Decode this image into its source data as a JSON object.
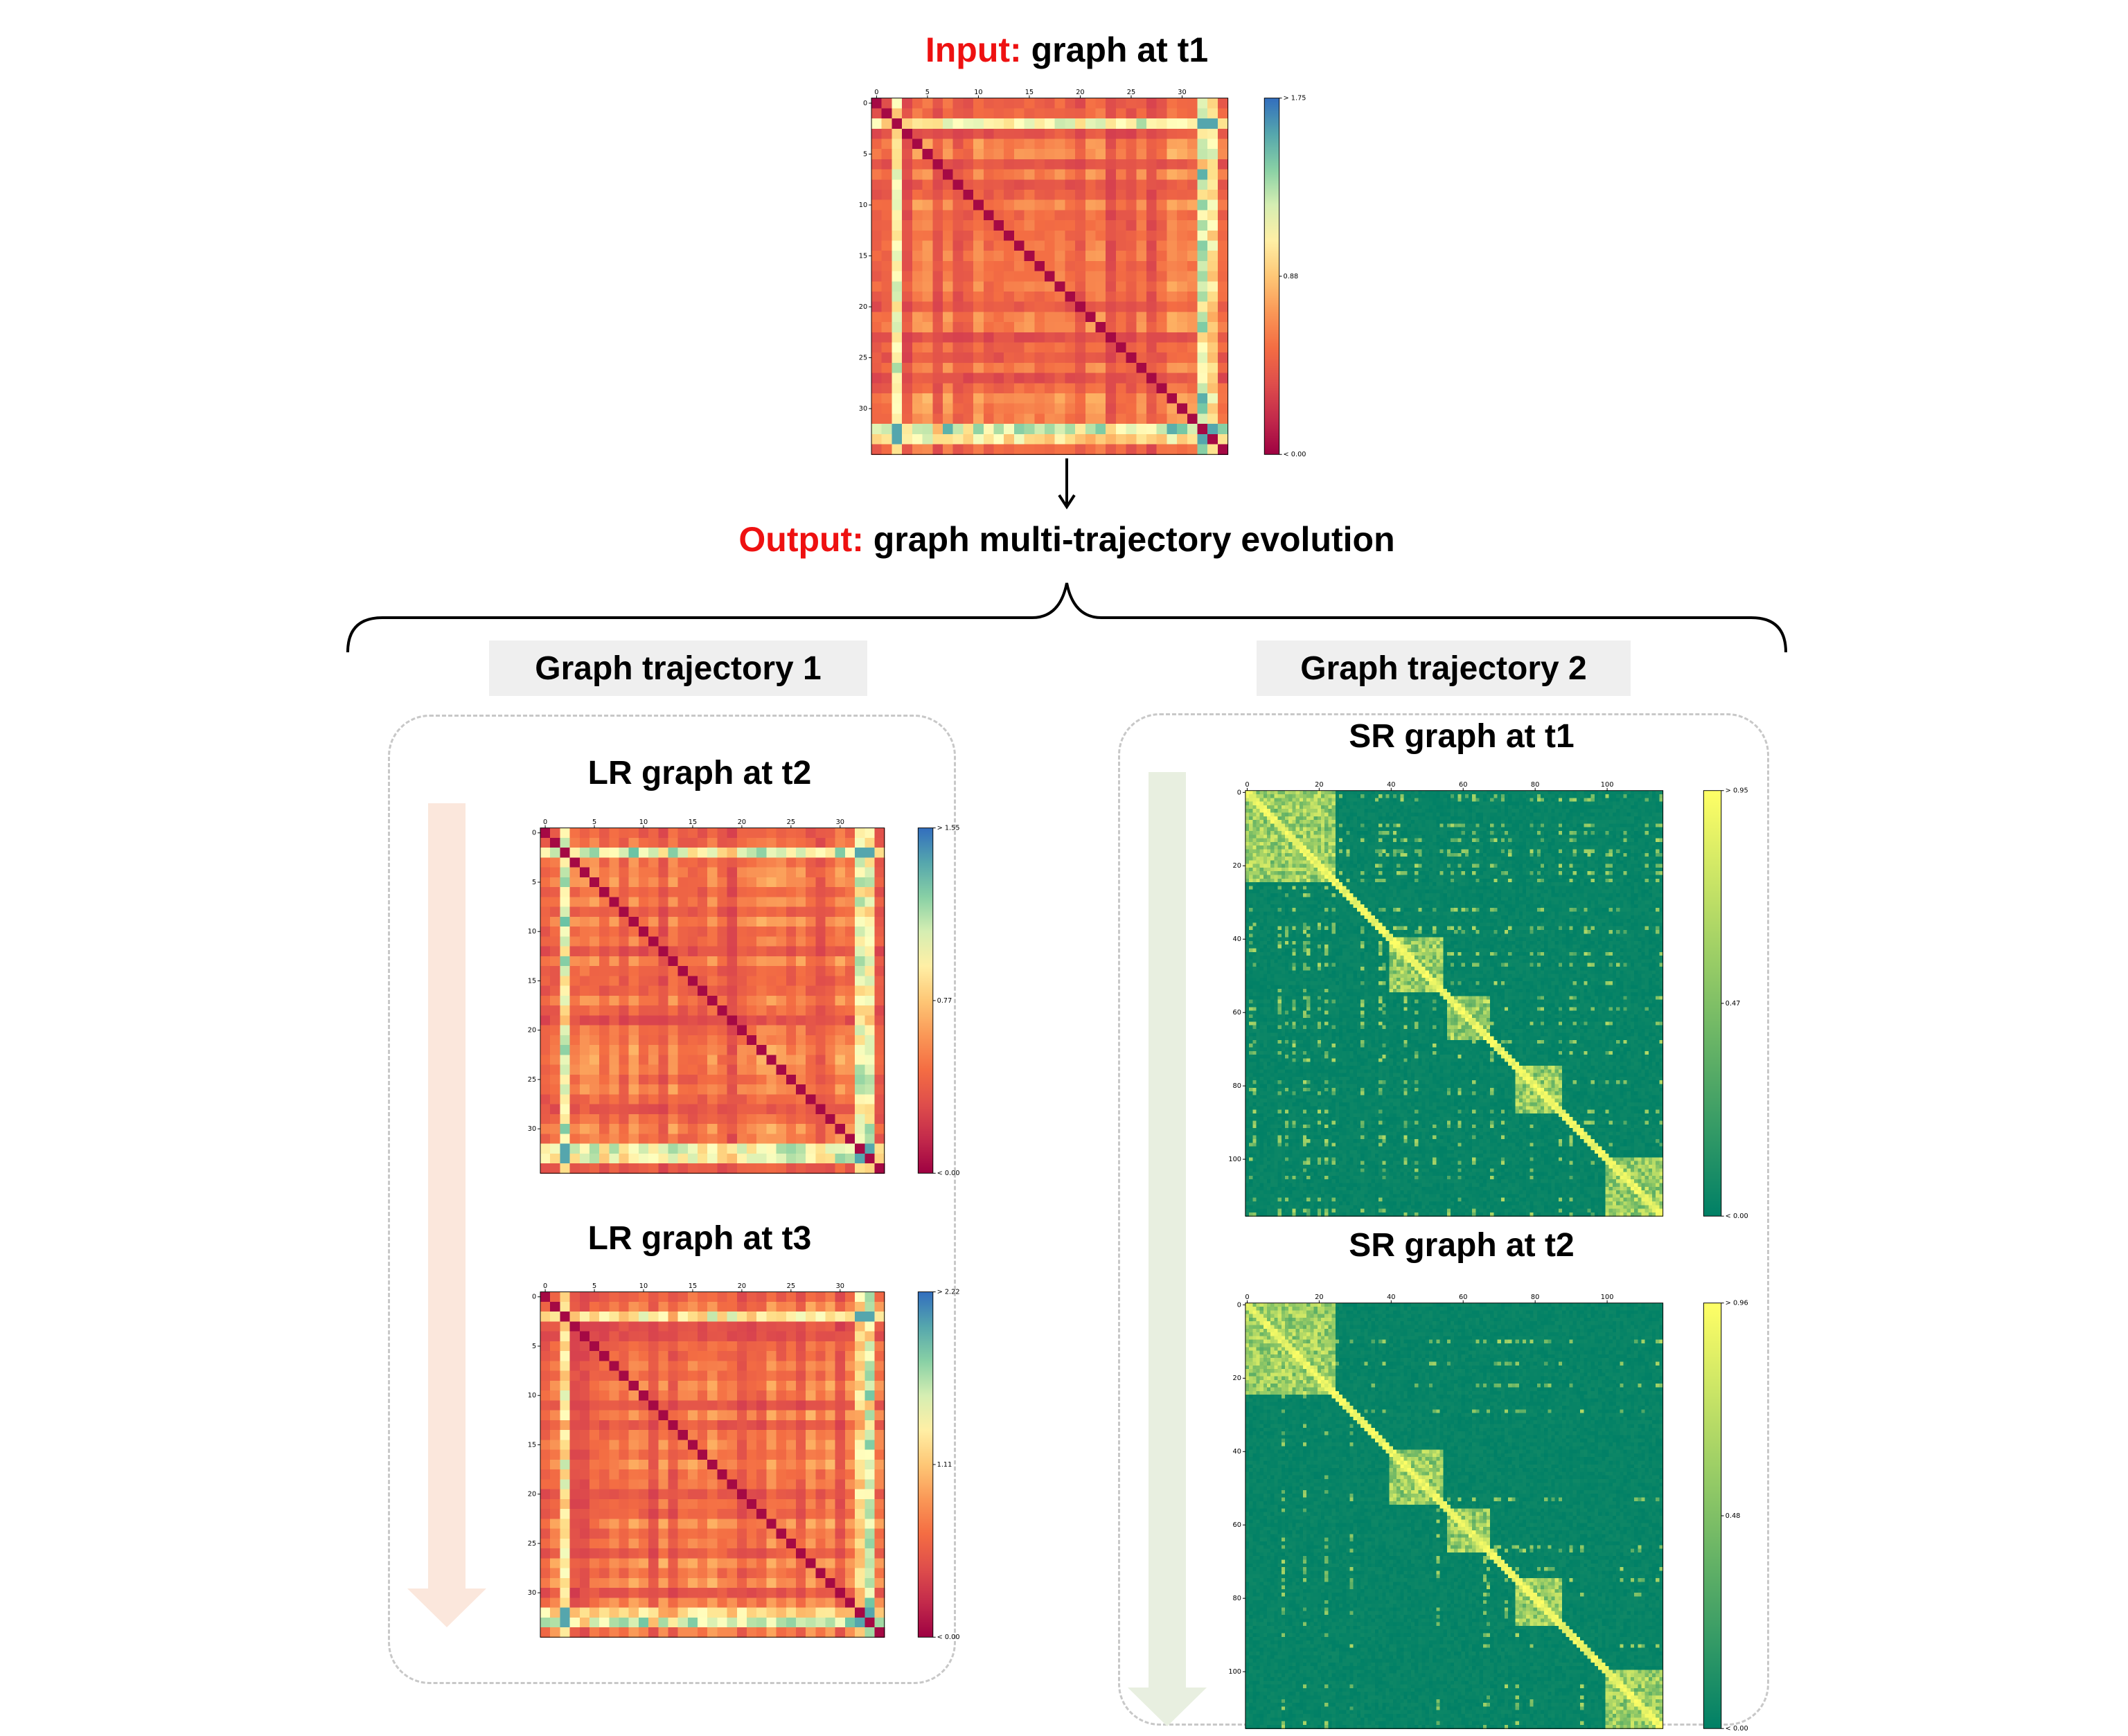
{
  "input": {
    "prefix": "Input:",
    "rest": " graph at t1"
  },
  "output": {
    "prefix": "Output:",
    "rest": " graph multi-trajectory evolution"
  },
  "trajectories": [
    {
      "label": "Graph trajectory 1"
    },
    {
      "label": "Graph trajectory 2"
    }
  ],
  "colors": {
    "accent_red": "#ee1111",
    "traj1_arrow": "#fbe7dc",
    "traj2_arrow": "#e8efe0",
    "dashed_border": "#c8c8c8"
  },
  "heatmaps": {
    "input_t1": {
      "title": "",
      "n": 35,
      "colormap": "spectral",
      "xticks": [
        "0",
        "5",
        "10",
        "15",
        "20",
        "25",
        "30"
      ],
      "yticks": [
        "0",
        "5",
        "10",
        "15",
        "20",
        "25",
        "30"
      ],
      "tick_step": 5,
      "colorbar": {
        "max": "> 1.75",
        "mid": "0.88",
        "min": "< 0.00"
      },
      "seed": 11
    },
    "lr_t2": {
      "title": "LR graph at t2",
      "n": 35,
      "colormap": "spectral",
      "xticks": [
        "0",
        "5",
        "10",
        "15",
        "20",
        "25",
        "30"
      ],
      "yticks": [
        "0",
        "5",
        "10",
        "15",
        "20",
        "25",
        "30"
      ],
      "tick_step": 5,
      "colorbar": {
        "max": "> 1.55",
        "mid": "0.77",
        "min": "< 0.00"
      },
      "seed": 23
    },
    "lr_t3": {
      "title": "LR graph at t3",
      "n": 35,
      "colormap": "spectral",
      "xticks": [
        "0",
        "5",
        "10",
        "15",
        "20",
        "25",
        "30"
      ],
      "yticks": [
        "0",
        "5",
        "10",
        "15",
        "20",
        "25",
        "30"
      ],
      "tick_step": 5,
      "colorbar": {
        "max": "> 2.22",
        "mid": "1.11",
        "min": "< 0.00"
      },
      "seed": 37
    },
    "sr_t1": {
      "title": "SR graph at t1",
      "n": 116,
      "colormap": "summer",
      "xticks": [
        "0",
        "20",
        "40",
        "60",
        "80",
        "100"
      ],
      "yticks": [
        "0",
        "20",
        "40",
        "60",
        "80",
        "100"
      ],
      "tick_step": 20,
      "colorbar": {
        "max": "> 0.95",
        "mid": "0.47",
        "min": "< 0.00"
      },
      "seed": 41
    },
    "sr_t2": {
      "title": "SR graph at t2",
      "n": 116,
      "colormap": "summer",
      "xticks": [
        "0",
        "20",
        "40",
        "60",
        "80",
        "100"
      ],
      "yticks": [
        "0",
        "20",
        "40",
        "60",
        "80",
        "100"
      ],
      "tick_step": 20,
      "colorbar": {
        "max": "> 0.96",
        "mid": "0.48",
        "min": "< 0.00"
      },
      "seed": 53
    }
  }
}
